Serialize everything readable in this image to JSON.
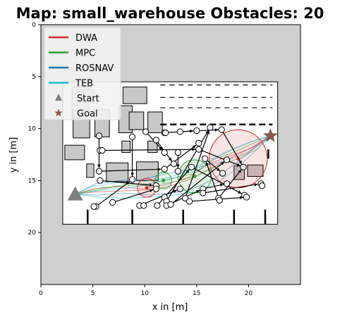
{
  "chart_data": {
    "type": "scatter",
    "title": "Map: small_warehouse Obstacles: 20",
    "xlabel": "x in [m]",
    "ylabel": "y in [m]",
    "xlim": [
      0,
      25
    ],
    "ylim": [
      25,
      0
    ],
    "y_inverted": true,
    "xticks": [
      0,
      5,
      10,
      15,
      20
    ],
    "yticks": [
      0,
      5,
      10,
      15,
      20
    ],
    "grid": false,
    "legend_position": "top-left",
    "colors": {
      "outside": "#cfcfcf",
      "free": "#ffffff",
      "obstacle": "#c8c8c8",
      "DWA": "#d62728",
      "MPC": "#2ca02c",
      "ROSNAV": "#1f77b4",
      "TEB": "#17becf",
      "start": "#7f7f7f",
      "goal": "#8c564b"
    },
    "legend": [
      {
        "label": "DWA",
        "kind": "line",
        "color": "#d62728"
      },
      {
        "label": "MPC",
        "kind": "line",
        "color": "#2ca02c"
      },
      {
        "label": "ROSNAV",
        "kind": "line",
        "color": "#1f77b4"
      },
      {
        "label": "TEB",
        "kind": "line",
        "color": "#17becf"
      },
      {
        "label": "Start",
        "kind": "triangle",
        "color": "#7f7f7f"
      },
      {
        "label": "Goal",
        "kind": "star",
        "color": "#8c564b"
      }
    ],
    "start": {
      "x": 3.3,
      "y": 16.3
    },
    "goal": {
      "x": 22.1,
      "y": 10.7
    },
    "free_area": {
      "x": [
        2.1,
        22.8
      ],
      "y": [
        5.5,
        19.2
      ]
    },
    "obstacle_circles": [
      {
        "x": 5.6,
        "y": 10.7
      },
      {
        "x": 5.7,
        "y": 12.1
      },
      {
        "x": 5.9,
        "y": 12.1
      },
      {
        "x": 5.6,
        "y": 14.1
      },
      {
        "x": 5.7,
        "y": 15.0
      },
      {
        "x": 5.3,
        "y": 17.5
      },
      {
        "x": 5.1,
        "y": 17.5
      },
      {
        "x": 6.9,
        "y": 17.1
      },
      {
        "x": 8.8,
        "y": 10.8
      },
      {
        "x": 8.8,
        "y": 14.9
      },
      {
        "x": 9.5,
        "y": 17.4
      },
      {
        "x": 9.9,
        "y": 17.4
      },
      {
        "x": 10.1,
        "y": 10.3
      },
      {
        "x": 11.1,
        "y": 15.5
      },
      {
        "x": 11.1,
        "y": 15.8
      },
      {
        "x": 11.2,
        "y": 17.4
      },
      {
        "x": 11.1,
        "y": 11.1
      },
      {
        "x": 11.9,
        "y": 10.4
      },
      {
        "x": 12.0,
        "y": 10.4
      },
      {
        "x": 11.9,
        "y": 12.3
      },
      {
        "x": 11.9,
        "y": 13.9
      },
      {
        "x": 11.9,
        "y": 16.6
      },
      {
        "x": 12.1,
        "y": 17.0
      },
      {
        "x": 12.1,
        "y": 17.4
      },
      {
        "x": 12.5,
        "y": 17.3
      },
      {
        "x": 12.8,
        "y": 13.4
      },
      {
        "x": 13.2,
        "y": 12.3
      },
      {
        "x": 13.4,
        "y": 10.3
      },
      {
        "x": 13.2,
        "y": 14.1
      },
      {
        "x": 13.4,
        "y": 15.8
      },
      {
        "x": 13.9,
        "y": 16.7
      },
      {
        "x": 14.3,
        "y": 17.0
      },
      {
        "x": 14.5,
        "y": 13.7
      },
      {
        "x": 15.0,
        "y": 10.2
      },
      {
        "x": 15.2,
        "y": 11.4
      },
      {
        "x": 15.2,
        "y": 12.0
      },
      {
        "x": 15.6,
        "y": 15.8
      },
      {
        "x": 15.6,
        "y": 16.2
      },
      {
        "x": 15.8,
        "y": 12.9
      },
      {
        "x": 16.3,
        "y": 9.9
      },
      {
        "x": 17.4,
        "y": 10.1
      },
      {
        "x": 17.1,
        "y": 16.7
      },
      {
        "x": 17.2,
        "y": 16.9
      },
      {
        "x": 17.5,
        "y": 14.3
      },
      {
        "x": 17.9,
        "y": 13.0
      },
      {
        "x": 17.9,
        "y": 15.3
      },
      {
        "x": 19.5,
        "y": 13.7
      },
      {
        "x": 19.6,
        "y": 16.4
      },
      {
        "x": 19.8,
        "y": 16.6
      },
      {
        "x": 21.2,
        "y": 15.3
      },
      {
        "x": 21.3,
        "y": 15.5
      }
    ],
    "obstacle_circle_radius": 0.28,
    "obstacle_links": [
      [
        5.7,
        12.1,
        15.2,
        12.0
      ],
      [
        5.6,
        10.7,
        5.6,
        14.1
      ],
      [
        5.6,
        14.1,
        11.9,
        13.9
      ],
      [
        5.7,
        15.0,
        11.1,
        15.5
      ],
      [
        6.9,
        17.1,
        11.1,
        15.8
      ],
      [
        5.3,
        17.5,
        8.8,
        14.9
      ],
      [
        8.8,
        10.8,
        8.8,
        14.9
      ],
      [
        9.5,
        17.4,
        13.4,
        15.8
      ],
      [
        10.1,
        10.3,
        11.9,
        12.3
      ],
      [
        11.9,
        10.4,
        15.0,
        10.2
      ],
      [
        11.1,
        11.1,
        12.8,
        13.4
      ],
      [
        11.9,
        13.9,
        15.2,
        11.4
      ],
      [
        12.5,
        17.3,
        17.9,
        13.0
      ],
      [
        12.1,
        17.0,
        16.3,
        9.9
      ],
      [
        13.2,
        12.3,
        13.2,
        14.1
      ],
      [
        13.4,
        10.3,
        17.4,
        10.1
      ],
      [
        14.3,
        17.0,
        19.8,
        16.6
      ],
      [
        14.5,
        13.7,
        19.6,
        16.4
      ],
      [
        15.6,
        15.8,
        17.9,
        15.3
      ],
      [
        15.6,
        16.2,
        21.2,
        15.3
      ],
      [
        15.8,
        12.9,
        17.5,
        14.3
      ],
      [
        17.1,
        16.7,
        19.5,
        13.7
      ],
      [
        17.4,
        10.1,
        19.5,
        13.7
      ],
      [
        15.2,
        12.0,
        19.5,
        13.7
      ],
      [
        17.2,
        16.9,
        15.8,
        12.9
      ],
      [
        11.2,
        17.4,
        14.5,
        13.7
      ],
      [
        12.1,
        17.4,
        15.6,
        15.8
      ],
      [
        13.9,
        16.7,
        16.3,
        9.9
      ]
    ],
    "static_obstacles": [
      {
        "x": 3.0,
        "y": 6.0,
        "w": 1.6,
        "h": 3.0
      },
      {
        "x": 4.1,
        "y": 6.3,
        "w": 1.0,
        "h": 1.2
      },
      {
        "x": 3.1,
        "y": 8.3,
        "w": 1.6,
        "h": 2.6
      },
      {
        "x": 5.2,
        "y": 8.2,
        "w": 1.4,
        "h": 2.6
      },
      {
        "x": 7.5,
        "y": 7.8,
        "w": 1.3,
        "h": 2.6
      },
      {
        "x": 7.9,
        "y": 6.0,
        "w": 2.3,
        "h": 1.6
      },
      {
        "x": 8.5,
        "y": 8.4,
        "w": 1.4,
        "h": 1.7
      },
      {
        "x": 10.3,
        "y": 8.4,
        "w": 1.4,
        "h": 2.0
      },
      {
        "x": 7.8,
        "y": 11.2,
        "w": 0.8,
        "h": 1.1
      },
      {
        "x": 10.3,
        "y": 11.2,
        "w": 0.9,
        "h": 1.1
      },
      {
        "x": 2.3,
        "y": 11.6,
        "w": 1.9,
        "h": 1.4
      },
      {
        "x": 4.4,
        "y": 13.4,
        "w": 0.7,
        "h": 1.3
      },
      {
        "x": 6.3,
        "y": 13.3,
        "w": 2.1,
        "h": 1.8
      },
      {
        "x": 9.2,
        "y": 13.2,
        "w": 2.1,
        "h": 1.8
      },
      {
        "x": 18.6,
        "y": 13.6,
        "w": 1.0,
        "h": 1.3
      },
      {
        "x": 19.9,
        "y": 13.5,
        "w": 1.5,
        "h": 1.1
      }
    ],
    "robot_circles": [
      {
        "x": 10.2,
        "y": 15.7,
        "r": 0.9,
        "color": "#d62728"
      },
      {
        "x": 14.8,
        "y": 14.6,
        "r": 1.6,
        "color": "#2ca02c"
      },
      {
        "x": 19.0,
        "y": 12.9,
        "r": 2.8,
        "color": "#d62728"
      },
      {
        "x": 11.8,
        "y": 15.0,
        "r": 0.8,
        "color": "#2ca02c"
      }
    ],
    "series": [
      {
        "name": "DWA",
        "color": "#d62728",
        "points": [
          [
            3.3,
            16.3
          ],
          [
            5.0,
            15.8
          ],
          [
            7.5,
            15.6
          ],
          [
            9.9,
            15.8
          ],
          [
            12.0,
            15.4
          ],
          [
            14.2,
            14.7
          ],
          [
            16.2,
            13.4
          ],
          [
            18.0,
            12.7
          ],
          [
            20.0,
            12.0
          ],
          [
            22.1,
            10.7
          ]
        ]
      },
      {
        "name": "DWA",
        "color": "#d62728",
        "points": [
          [
            3.3,
            16.3
          ],
          [
            5.2,
            16.1
          ],
          [
            7.7,
            16.0
          ],
          [
            10.2,
            15.9
          ],
          [
            12.1,
            15.6
          ],
          [
            14.3,
            14.9
          ],
          [
            16.6,
            13.7
          ],
          [
            18.7,
            12.6
          ],
          [
            20.6,
            11.7
          ],
          [
            22.1,
            10.7
          ]
        ]
      },
      {
        "name": "MPC",
        "color": "#2ca02c",
        "points": [
          [
            3.3,
            16.3
          ],
          [
            5.5,
            15.9
          ],
          [
            8.0,
            15.4
          ],
          [
            10.3,
            15.3
          ],
          [
            12.4,
            14.9
          ],
          [
            14.8,
            14.3
          ],
          [
            16.5,
            13.0
          ],
          [
            18.5,
            12.3
          ],
          [
            20.5,
            11.4
          ],
          [
            22.1,
            10.7
          ]
        ]
      },
      {
        "name": "MPC",
        "color": "#2ca02c",
        "points": [
          [
            3.3,
            16.3
          ],
          [
            5.8,
            15.7
          ],
          [
            8.2,
            15.5
          ],
          [
            10.6,
            15.5
          ],
          [
            12.9,
            15.1
          ],
          [
            14.9,
            14.6
          ],
          [
            16.9,
            13.6
          ],
          [
            18.9,
            12.9
          ],
          [
            20.8,
            12.0
          ],
          [
            22.1,
            10.7
          ]
        ]
      },
      {
        "name": "ROSNAV",
        "color": "#1f77b4",
        "points": [
          [
            3.3,
            16.3
          ],
          [
            5.5,
            16.4
          ],
          [
            8.0,
            16.2
          ],
          [
            10.5,
            16.4
          ],
          [
            12.6,
            16.2
          ],
          [
            14.6,
            15.8
          ],
          [
            16.6,
            14.9
          ],
          [
            18.4,
            13.6
          ],
          [
            20.3,
            12.1
          ],
          [
            22.1,
            10.7
          ]
        ]
      },
      {
        "name": "ROSNAV",
        "color": "#1f77b4",
        "points": [
          [
            3.3,
            16.3
          ],
          [
            5.3,
            15.3
          ],
          [
            7.6,
            15.0
          ],
          [
            9.6,
            14.9
          ],
          [
            11.8,
            14.4
          ],
          [
            13.8,
            14.0
          ],
          [
            15.8,
            13.6
          ],
          [
            17.8,
            13.1
          ],
          [
            19.9,
            12.3
          ],
          [
            22.1,
            10.7
          ]
        ]
      },
      {
        "name": "TEB",
        "color": "#17becf",
        "points": [
          [
            3.3,
            16.3
          ],
          [
            5.1,
            15.5
          ],
          [
            7.4,
            15.2
          ],
          [
            9.8,
            15.1
          ],
          [
            11.9,
            14.8
          ],
          [
            13.9,
            14.2
          ],
          [
            15.9,
            13.2
          ],
          [
            17.9,
            12.2
          ],
          [
            20.1,
            11.3
          ],
          [
            22.1,
            10.7
          ]
        ]
      },
      {
        "name": "TEB",
        "color": "#17becf",
        "points": [
          [
            3.3,
            16.3
          ],
          [
            5.4,
            16.6
          ],
          [
            7.9,
            16.7
          ],
          [
            10.4,
            16.6
          ],
          [
            12.8,
            16.4
          ],
          [
            15.0,
            16.1
          ],
          [
            17.0,
            15.2
          ],
          [
            18.9,
            13.8
          ],
          [
            20.6,
            12.2
          ],
          [
            22.1,
            10.7
          ]
        ]
      },
      {
        "name": "TEB",
        "color": "#17becf",
        "points": [
          [
            3.3,
            16.3
          ],
          [
            6.0,
            15.9
          ],
          [
            8.6,
            15.7
          ],
          [
            11.0,
            15.2
          ],
          [
            13.3,
            14.6
          ],
          [
            15.3,
            13.9
          ],
          [
            17.2,
            12.6
          ],
          [
            19.2,
            11.7
          ],
          [
            21.0,
            11.0
          ],
          [
            22.1,
            10.7
          ]
        ]
      }
    ]
  }
}
